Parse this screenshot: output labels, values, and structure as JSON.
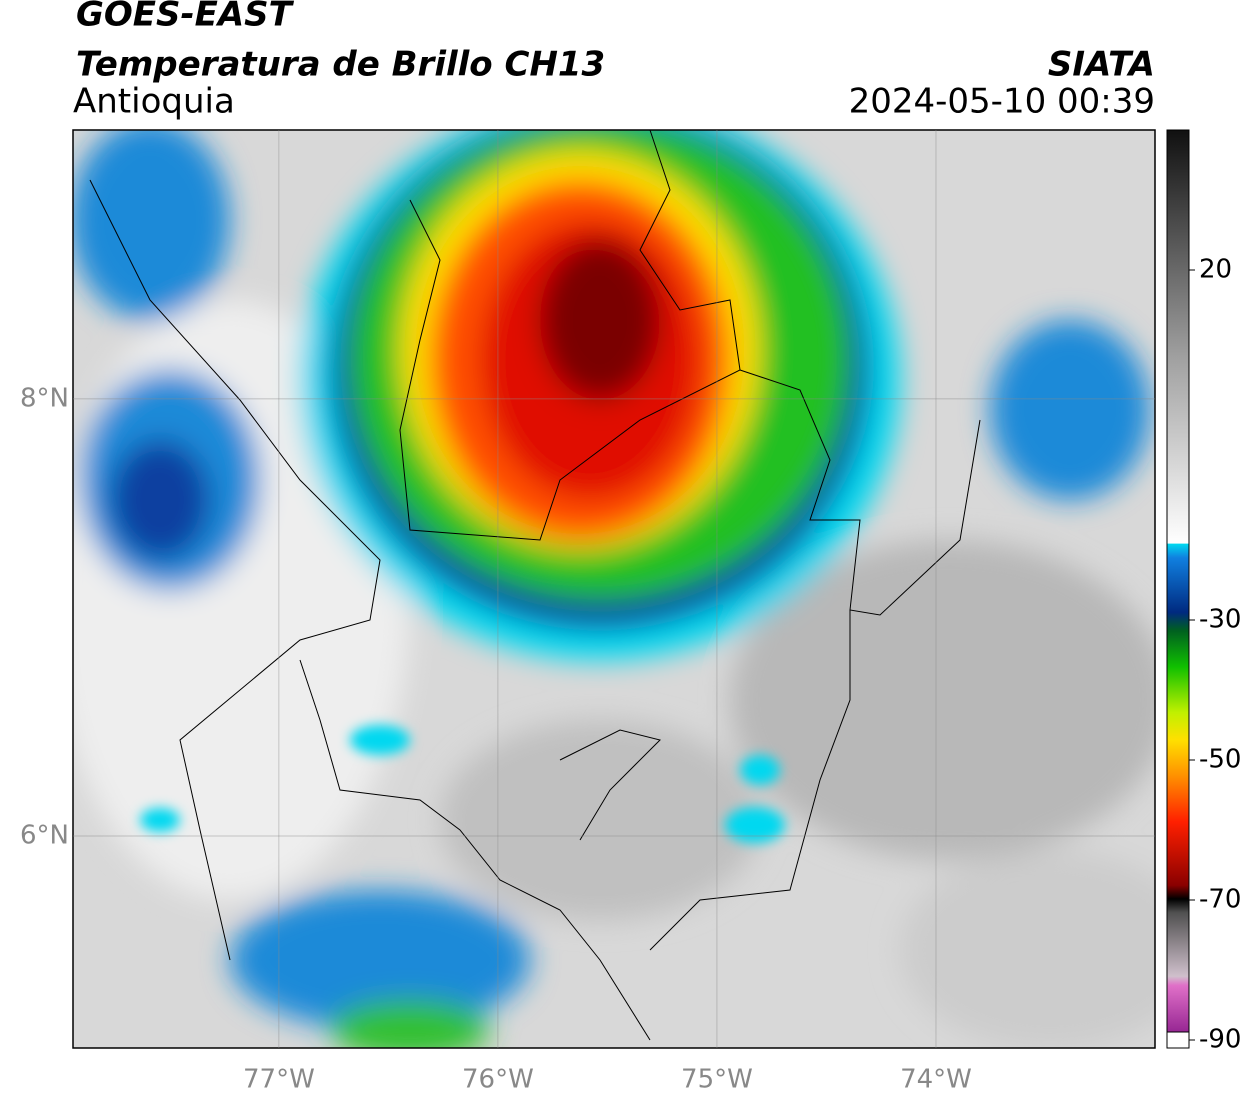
{
  "header": {
    "title": "GOES-EAST",
    "subtitle": "Temperatura de Brillo CH13",
    "region": "Antioquia",
    "source": "SIATA",
    "datetime": "2024-05-10 00:39"
  },
  "map": {
    "xlim": [
      -77.94,
      -73.0
    ],
    "ylim": [
      5.03,
      9.23
    ],
    "xticks": [
      {
        "value": -77,
        "label": "77°W"
      },
      {
        "value": -76,
        "label": "76°W"
      },
      {
        "value": -75,
        "label": "75°W"
      },
      {
        "value": -74,
        "label": "74°W"
      }
    ],
    "yticks": [
      {
        "value": 8,
        "label": "8°N"
      },
      {
        "value": 6,
        "label": "6°N"
      }
    ],
    "grid": true
  },
  "colorbar": {
    "lim": [
      -90,
      40
    ],
    "ticks": [
      20,
      -30,
      -50,
      -70,
      -90
    ]
  }
}
